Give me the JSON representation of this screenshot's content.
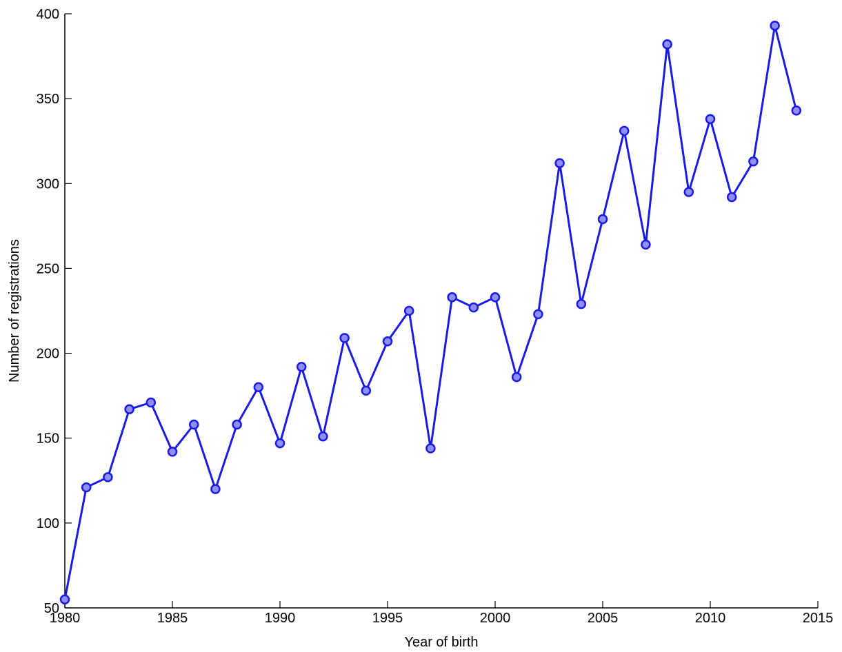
{
  "chart_data": {
    "type": "line",
    "xlabel": "Year of birth",
    "ylabel": "Number of registrations",
    "xlim": [
      1980,
      2015
    ],
    "ylim": [
      50,
      400
    ],
    "xticks": [
      1980,
      1985,
      1990,
      1995,
      2000,
      2005,
      2010,
      2015
    ],
    "yticks": [
      50,
      100,
      150,
      200,
      250,
      300,
      350,
      400
    ],
    "grid": false,
    "legend": "none",
    "colors": {
      "line": "#1a1ae6",
      "marker_fill": "#8f8ff5",
      "marker_edge": "#1a1ae6",
      "axis": "#000000"
    },
    "series": [
      {
        "x": [
          1980,
          1981,
          1982,
          1983,
          1984,
          1985,
          1986,
          1987,
          1988,
          1989,
          1990,
          1991,
          1992,
          1993,
          1994,
          1995,
          1996,
          1997,
          1998,
          1999,
          2000,
          2001,
          2002,
          2003,
          2004,
          2005,
          2006,
          2007,
          2008,
          2009,
          2010,
          2011,
          2012,
          2013,
          2014
        ],
        "values": [
          55,
          121,
          127,
          167,
          171,
          142,
          158,
          120,
          158,
          180,
          147,
          192,
          151,
          209,
          178,
          207,
          225,
          144,
          233,
          227,
          233,
          186,
          223,
          312,
          229,
          279,
          331,
          264,
          382,
          295,
          338,
          292,
          313,
          393,
          343
        ]
      }
    ]
  }
}
